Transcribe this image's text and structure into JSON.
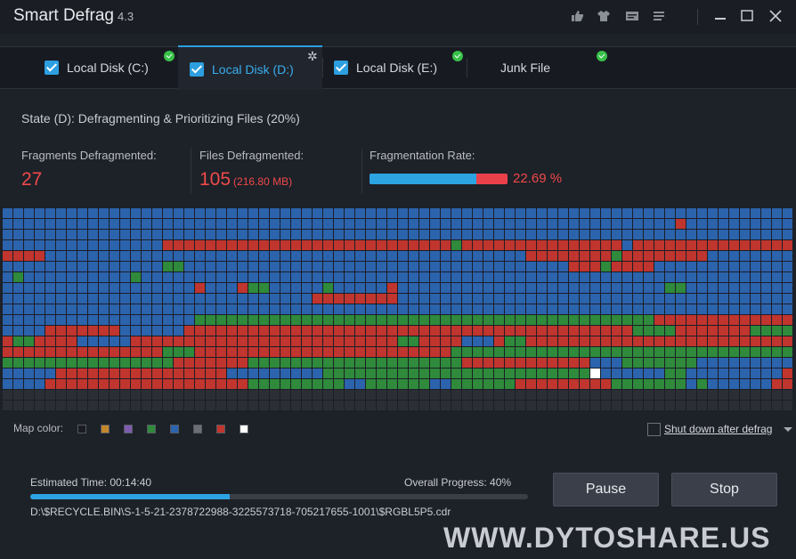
{
  "window": {
    "title": "Smart Defrag",
    "version": "4.3",
    "icons": [
      "thumbs-up-icon",
      "shirt-icon",
      "message-icon",
      "list-icon"
    ],
    "controls": [
      "minimize-icon",
      "maximize-icon",
      "close-icon"
    ]
  },
  "tabs": [
    {
      "label": "Local Disk (C:)",
      "checked": true,
      "status": "complete-icon"
    },
    {
      "label": "Local Disk (D:)",
      "checked": true,
      "status": "gear-icon",
      "active": true
    },
    {
      "label": "Local Disk (E:)",
      "checked": true,
      "status": "complete-icon"
    },
    {
      "label": "Junk File",
      "checked": false,
      "status": "complete-icon"
    }
  ],
  "state": "State (D): Defragmenting & Prioritizing Files (20%)",
  "stats": {
    "fragments_label": "Fragments Defragmented:",
    "fragments_value": "27",
    "files_label": "Files Defragmented:",
    "files_value": "105",
    "files_size": "(216.80 MB)",
    "rate_label": "Fragmentation Rate:",
    "rate_value": "22.69 %",
    "rate_fraction": 0.7731
  },
  "map_legend": {
    "label": "Map color:",
    "colors": [
      "#1a1c21",
      "#c4872c",
      "#7d5cae",
      "#2f8a3b",
      "#2c63ad",
      "#6c6f75",
      "#c0352e",
      "#ffffff"
    ]
  },
  "disk_map": {
    "colors": {
      "B": "#2c63ad",
      "R": "#c0352e",
      "G": "#2f8a3b",
      "D": "#2b2e34",
      "W": "#ffffff"
    },
    "rows": [
      "BBBBBBBBBBBBBBBBBBBBBBBBBBBBBBBBBBBBBBBBBBBBBBBBBBBBBBBBBBBBBBBBBBBBBBBBBB",
      "BBBBBBBBBBBBBBBBBBBBBBBBBBBBBBBBBBBBBBBBBBBBBBBBBBBBBBBBBBBBBBBRBBBBBBBBBB",
      "BBBBBBBBBBBBBBBBBBBBBBBBBBBBBBBBBBBBBBBBBBBBBBBBBBBBBBBBBBBBBBBBBBBBBBBBBB",
      "BBBBBBBBBBBBBBBRRRRRRRRRRRRRRRRRRRRRRRRRRRGRRRRRRRRRRRRRRRBRRRRRRRRRRRRRRRR",
      "RRRRBBBBBBBBBBBBBBBBBBBBBBBBBBBBBBBBBBBBBBBBBBBBBRRRRRRRRGRRRRRRRRBBBBBBBBBB",
      "BBBBBBBBBBBBBBBGGBBBBBBBBBBBBBBBBBBBBBBBBBBBBBBBBBBBBRRRGRRRRBBBBBBBBBBBBBB",
      "BGBBBBBBBBBBGBBBBBBBBBBBBBBBBBBBBBBBBBBBBBBBBBBBBBBBBBBBBBBBBBBBBBBBBBBBBBBB",
      "BBBBBBBBBBBBBBBBBBRBBBRGGBBBBBGBBBBBRBBBBBBBBBBBBBBBBBBBBBBBBBGGBBBBBBBBBB",
      "BBBBBBBBBBBBBBBBBBBBBBBBBBBBBRRRRRRRRBBBBBBBBBBBBBBBBBBBBBBBBBBBBBBBBBBBBBB",
      "BBBBBBBBBBBBBBBBBBBBBBBBBBBBBBBBBBBBBBBBBBBBBBBBBBBBBBBBBBBBBBBBBBBBBBBBBB",
      "BBBBBBBBBBBBBBBBBBGGGGGGGGGGGGGGGGGGGGGGGGGGGGGGGGGGGGGGGGGGGRRRRRRRRRRRRRR",
      "BBBBRRRRRRRBBBBBBRRRRRRRRRRRRRRRRRRRRRRRRRRRRRRRRRRRRRRRRRRGGGGRRRRRRRGGGGGGG",
      "RGGRRRRBBBBBRRRRRRRRRRRRRRRRRRRRRRRRRGGRRRRBBBRGGRRRRRRRRRRRRRRRRRRRRRRRRRRR",
      "RRRRRRRRRRRRRRRGGGRRRRRRRRRRRRRRRRRRRRRRRRGGGGGGGGGGGGGGGGGGGGGGGGGGGGGGGG",
      "GGGGGGGGGGGGGGGGRRRRRRRGGGGGGGGGGGGGGGGGGGGRRRRRRRRRRRRBBBGGGGGGGBBBBBBBBBB",
      "BBBBBRRRRRRRRRRRRRRRRBBBBBBBBBGGGGGGGGGGGGGGGGGGGGGGGGGWBBBBBBGGBBBBBBBBBRRR",
      "BBBBRRRRRRRRRRRRRRRRRRRGGGGGGGGGBBGGGGGGBBGGGGGGRRRRRRRRRGGGGGGGBGBBBBBBRRBR",
      "DDDDDDDDDDDDDDDDDDDDDDDDDDDDDDDDDDDDDDDDDDDDDDDDDDDDDDDDDDDDDDDDDDDDDDDDDDDD",
      "DDDDDDDDDDDDDDDDDDDDDDDDDDDDDDDDDDDDDDDDDDDDDDDDDDDDDDDDDDDDDDDDDDDDDDDDDDDD"
    ]
  },
  "shutdown": {
    "label": "Shut down after defrag",
    "checked": false
  },
  "progress": {
    "estimated_label": "Estimated Time:  00:14:40",
    "overall_label": "Overall Progress: 40%",
    "fraction": 0.4,
    "current_file": "D:\\$RECYCLE.BIN\\S-1-5-21-2378722988-3225573718-705217655-1001\\$RGBL5P5.cdr"
  },
  "buttons": {
    "pause": "Pause",
    "stop": "Stop"
  },
  "watermark": "WWW.DYTOSHARE.US"
}
